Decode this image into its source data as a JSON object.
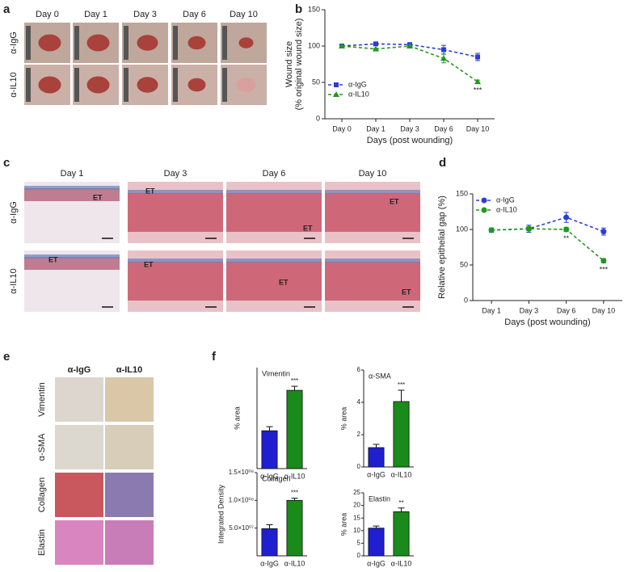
{
  "panel_letters": [
    "a",
    "b",
    "c",
    "d",
    "e",
    "f"
  ],
  "panel_a": {
    "columns": [
      "Day 0",
      "Day 1",
      "Day 3",
      "Day 6",
      "Day 10"
    ],
    "rows": [
      "α-IgG",
      "α-IL10"
    ]
  },
  "panel_c": {
    "columns": [
      "Day 1",
      "Day 3",
      "Day 6",
      "Day 10"
    ],
    "rows": [
      "α-IgG",
      "α-IL10"
    ],
    "tissue_label": "ET"
  },
  "panel_e": {
    "columns": [
      "α-IgG",
      "α-IL10"
    ],
    "rows": [
      "Vimentin",
      "α-SMA",
      "Collagen",
      "Elastin"
    ]
  },
  "chart_data": [
    {
      "type": "line",
      "ylabel": [
        "Wound size",
        "(% original wound size)"
      ],
      "xlabel": "Days (post wounding)",
      "categories": [
        "Day 0",
        "Day 1",
        "Day 3",
        "Day 6",
        "Day 10"
      ],
      "ylim": [
        0,
        150
      ],
      "yticks": [
        0,
        50,
        100,
        150
      ],
      "legend": "lower left",
      "series": [
        {
          "name": "α-IgG",
          "color": "#2a3dd6",
          "marker": "square",
          "values": [
            100,
            103,
            102,
            95,
            85
          ],
          "errors": [
            1,
            2,
            2,
            6,
            5
          ],
          "value_annotations": [
            null,
            null,
            null,
            null,
            null
          ]
        },
        {
          "name": "α-IL10",
          "color": "#1e9a1e",
          "marker": "triangle",
          "values": [
            100,
            96,
            100,
            83,
            51
          ],
          "errors": [
            1,
            1,
            1,
            6,
            2
          ],
          "value_annotations": [
            null,
            null,
            null,
            null,
            "***"
          ]
        }
      ]
    },
    {
      "type": "line",
      "ylabel": [
        "Relative epithelial gap (%)"
      ],
      "xlabel": "Days (post wounding)",
      "categories": [
        "Day 1",
        "Day 3",
        "Day 6",
        "Day 10"
      ],
      "ylim": [
        0,
        150
      ],
      "yticks": [
        0,
        50,
        100,
        150
      ],
      "legend": "upper left",
      "series": [
        {
          "name": "α-IgG",
          "color": "#2a3dd6",
          "marker": "circle",
          "values": [
            99,
            101,
            117,
            97
          ],
          "errors": [
            3,
            5,
            7,
            5
          ],
          "value_annotations": [
            null,
            null,
            null,
            null
          ]
        },
        {
          "name": "α-IL10",
          "color": "#1e9a1e",
          "marker": "circle",
          "values": [
            99,
            101,
            100,
            56
          ],
          "errors": [
            2,
            3,
            3,
            3
          ],
          "value_annotations": [
            null,
            null,
            "**",
            "***"
          ]
        }
      ]
    },
    {
      "type": "bar",
      "title": "Vimentin",
      "ylabel": "% area",
      "categories": [
        "α-IgG",
        "α-IL10"
      ],
      "values": [
        7.5,
        15.5
      ],
      "errors": [
        0.8,
        0.8
      ],
      "colors": [
        "#1f1fd0",
        "#1a8a1a"
      ],
      "ylim": [
        0,
        20
      ],
      "annotations": [
        null,
        "***"
      ]
    },
    {
      "type": "bar",
      "title": "α-SMA",
      "ylabel": "% area",
      "categories": [
        "α-IgG",
        "α-IL10"
      ],
      "values": [
        1.2,
        4.05
      ],
      "errors": [
        0.2,
        0.7
      ],
      "colors": [
        "#1f1fd0",
        "#1a8a1a"
      ],
      "ylim": [
        0,
        6
      ],
      "yticks": [
        0,
        2,
        4,
        6
      ],
      "annotations": [
        null,
        "***"
      ]
    },
    {
      "type": "bar",
      "title": "Collagen",
      "ylabel": "Integrated Density",
      "categories": [
        "α-IgG",
        "α-IL10"
      ],
      "values": [
        49000000,
        100000000
      ],
      "errors": [
        7000000,
        4000000
      ],
      "colors": [
        "#1f1fd0",
        "#1a8a1a"
      ],
      "ylim": [
        0,
        150000000
      ],
      "yticks": [
        {
          "value": 50000000,
          "label": "5.0×10⁰⁷"
        },
        {
          "value": 100000000,
          "label": "1.0×10⁰⁸"
        },
        {
          "value": 150000000,
          "label": "1.5×10⁰⁸"
        }
      ],
      "annotations": [
        null,
        "***"
      ]
    },
    {
      "type": "bar",
      "title": "Elastin",
      "ylabel": "% area",
      "categories": [
        "α-IgG",
        "α-IL10"
      ],
      "values": [
        11,
        17.5
      ],
      "errors": [
        0.8,
        1.5
      ],
      "colors": [
        "#1f1fd0",
        "#1a8a1a"
      ],
      "ylim": [
        0,
        25
      ],
      "yticks": [
        0,
        5,
        10,
        15,
        20,
        25
      ],
      "annotations": [
        null,
        "**"
      ]
    }
  ]
}
